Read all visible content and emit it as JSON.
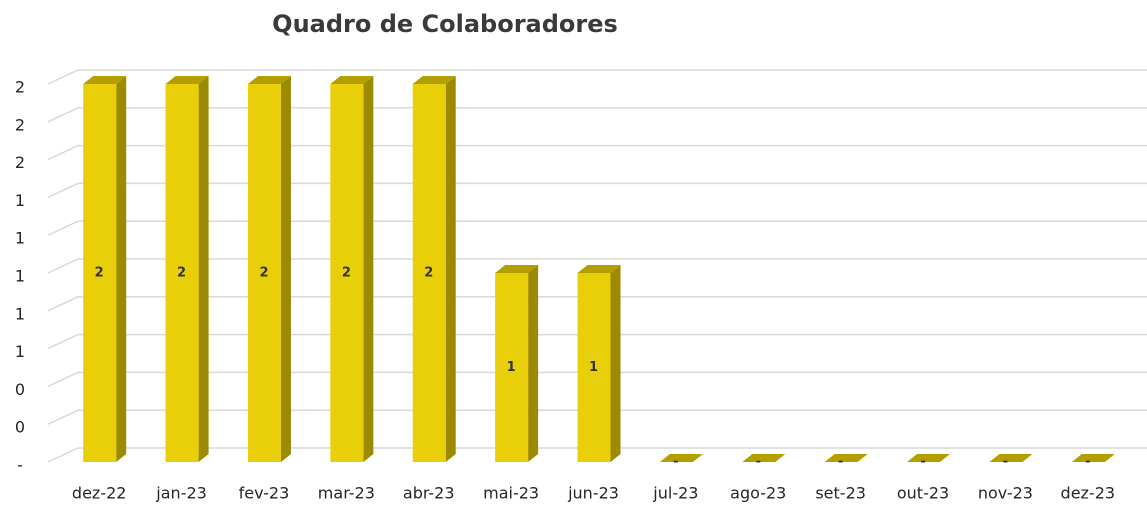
{
  "chart_data": {
    "type": "bar",
    "title": "Quadro  de Colaboradores",
    "categories": [
      "dez-22",
      "jan-23",
      "fev-23",
      "mar-23",
      "abr-23",
      "mai-23",
      "jun-23",
      "jul-23",
      "ago-23",
      "set-23",
      "out-23",
      "nov-23",
      "dez-23"
    ],
    "values": [
      2,
      2,
      2,
      2,
      2,
      1,
      1,
      0,
      0,
      0,
      0,
      0,
      0
    ],
    "value_labels": [
      "2",
      "2",
      "2",
      "2",
      "2",
      "1",
      "1",
      "-",
      "-",
      "-",
      "-",
      "-",
      "-"
    ],
    "color": "#e8cf0a",
    "ylim": [
      0,
      2
    ],
    "yticks": [
      {
        "value": 0,
        "label": "-"
      },
      {
        "value": 0.2,
        "label": "0"
      },
      {
        "value": 0.4,
        "label": "0"
      },
      {
        "value": 0.6,
        "label": "1"
      },
      {
        "value": 0.8,
        "label": "1"
      },
      {
        "value": 1.0,
        "label": "1"
      },
      {
        "value": 1.2,
        "label": "1"
      },
      {
        "value": 1.4,
        "label": "1"
      },
      {
        "value": 1.6,
        "label": "2"
      },
      {
        "value": 1.8,
        "label": "2"
      },
      {
        "value": 2.0,
        "label": "2"
      }
    ],
    "grid": true
  }
}
